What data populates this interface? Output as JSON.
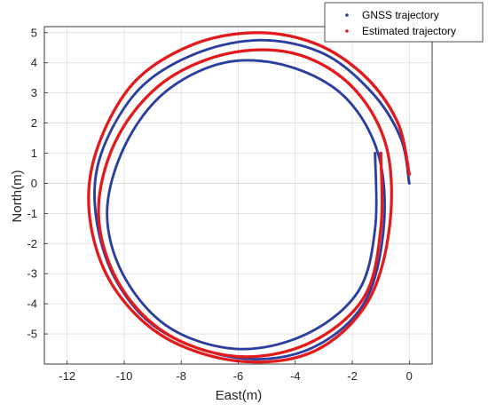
{
  "chart_data": {
    "type": "scatter",
    "title": "",
    "xlabel": "East(m)",
    "ylabel": "North(m)",
    "xlim": [
      -12.8,
      0.8
    ],
    "ylim": [
      -6,
      5.2
    ],
    "xticks": [
      -12,
      -10,
      -8,
      -6,
      -4,
      -2,
      0
    ],
    "yticks": [
      5,
      4,
      3,
      2,
      1,
      0,
      -1,
      -2,
      -3,
      -4,
      -5
    ],
    "xtick_labels": [
      "-12",
      "-10",
      "-8",
      "-6",
      "-4",
      "-2",
      "0"
    ],
    "ytick_labels": [
      "5",
      "4",
      "3",
      "2",
      "1",
      "0",
      "-1",
      "-2",
      "-3",
      "-4",
      "-5"
    ],
    "grid": true,
    "legend": {
      "placement": "top-right"
    },
    "series": [
      {
        "name": "GNSS trajectory",
        "color": "#2b3f9e",
        "marker": "dot",
        "description_points": [
          [
            0,
            0
          ],
          [
            -0.3,
            1.5
          ],
          [
            -1.3,
            3.0
          ],
          [
            -3.0,
            4.3
          ],
          [
            -5.2,
            4.75
          ],
          [
            -7.5,
            4.3
          ],
          [
            -9.5,
            3.1
          ],
          [
            -10.8,
            1.0
          ],
          [
            -11.0,
            -1.0
          ],
          [
            -10.3,
            -3.2
          ],
          [
            -8.7,
            -4.9
          ],
          [
            -6.0,
            -5.8
          ],
          [
            -3.5,
            -5.5
          ],
          [
            -1.6,
            -4.0
          ],
          [
            -0.9,
            -1.5
          ],
          [
            -1.1,
            1.0
          ],
          [
            -2.3,
            2.9
          ],
          [
            -4.3,
            3.9
          ],
          [
            -6.5,
            4.0
          ],
          [
            -8.6,
            3.0
          ],
          [
            -10.0,
            1.2
          ],
          [
            -10.6,
            -1.0
          ],
          [
            -10.0,
            -3.1
          ],
          [
            -8.4,
            -4.8
          ],
          [
            -6.0,
            -5.5
          ],
          [
            -3.6,
            -5.0
          ],
          [
            -1.8,
            -3.6
          ],
          [
            -1.2,
            -1.5
          ],
          [
            -1.2,
            1.0
          ]
        ]
      },
      {
        "name": "Estimated trajectory",
        "color": "#e31a1c",
        "marker": "dot",
        "description_points": [
          [
            0,
            0.3
          ],
          [
            -0.4,
            2.0
          ],
          [
            -1.5,
            3.5
          ],
          [
            -3.2,
            4.6
          ],
          [
            -5.3,
            5.0
          ],
          [
            -7.6,
            4.6
          ],
          [
            -9.7,
            3.3
          ],
          [
            -11.0,
            1.0
          ],
          [
            -11.2,
            -1.2
          ],
          [
            -10.4,
            -3.4
          ],
          [
            -8.6,
            -5.1
          ],
          [
            -6.0,
            -5.9
          ],
          [
            -3.4,
            -5.6
          ],
          [
            -1.5,
            -4.0
          ],
          [
            -0.7,
            -1.5
          ],
          [
            -0.8,
            1.2
          ],
          [
            -2.0,
            3.2
          ],
          [
            -4.0,
            4.3
          ],
          [
            -6.4,
            4.3
          ],
          [
            -8.7,
            3.3
          ],
          [
            -10.3,
            1.4
          ],
          [
            -10.9,
            -1.0
          ],
          [
            -10.2,
            -3.3
          ],
          [
            -8.5,
            -5.0
          ],
          [
            -6.0,
            -5.75
          ],
          [
            -3.5,
            -5.3
          ],
          [
            -1.6,
            -3.8
          ],
          [
            -1.0,
            -1.5
          ],
          [
            -1.0,
            1.0
          ]
        ]
      }
    ]
  }
}
